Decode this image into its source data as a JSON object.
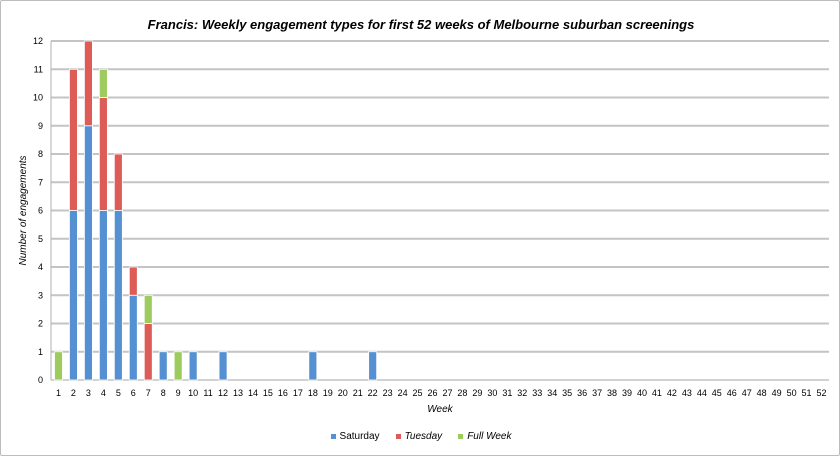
{
  "chart_data": {
    "type": "bar",
    "stacked": true,
    "title": "Francis: Weekly engagement types for first 52 weeks of Melbourne suburban screenings",
    "xlabel": "Week",
    "ylabel": "Number of engagements",
    "ylim": [
      0,
      12
    ],
    "yticks": [
      0,
      1,
      2,
      3,
      4,
      5,
      6,
      7,
      8,
      9,
      10,
      11,
      12
    ],
    "grid": true,
    "legend_position": "bottom",
    "categories": [
      "1",
      "2",
      "3",
      "4",
      "5",
      "6",
      "7",
      "8",
      "9",
      "10",
      "11",
      "12",
      "13",
      "14",
      "15",
      "16",
      "17",
      "18",
      "19",
      "20",
      "21",
      "22",
      "23",
      "24",
      "25",
      "26",
      "27",
      "28",
      "29",
      "30",
      "31",
      "32",
      "33",
      "34",
      "35",
      "36",
      "37",
      "38",
      "39",
      "40",
      "41",
      "42",
      "43",
      "44",
      "45",
      "46",
      "47",
      "48",
      "49",
      "50",
      "51",
      "52"
    ],
    "series": [
      {
        "name": "Saturday",
        "color": "#5591d2",
        "italic": false,
        "values": [
          0,
          6,
          9,
          6,
          6,
          3,
          0,
          1,
          0,
          1,
          0,
          1,
          0,
          0,
          0,
          0,
          0,
          1,
          0,
          0,
          0,
          1,
          0,
          0,
          0,
          0,
          0,
          0,
          0,
          0,
          0,
          0,
          0,
          0,
          0,
          0,
          0,
          0,
          0,
          0,
          0,
          0,
          0,
          0,
          0,
          0,
          0,
          0,
          0,
          0,
          0,
          0
        ]
      },
      {
        "name": "Tuesday",
        "color": "#de5c58",
        "italic": true,
        "values": [
          0,
          5,
          3,
          4,
          2,
          1,
          2,
          0,
          0,
          0,
          0,
          0,
          0,
          0,
          0,
          0,
          0,
          0,
          0,
          0,
          0,
          0,
          0,
          0,
          0,
          0,
          0,
          0,
          0,
          0,
          0,
          0,
          0,
          0,
          0,
          0,
          0,
          0,
          0,
          0,
          0,
          0,
          0,
          0,
          0,
          0,
          0,
          0,
          0,
          0,
          0,
          0
        ]
      },
      {
        "name": "Full Week",
        "color": "#9dcb5e",
        "italic": true,
        "values": [
          1,
          0,
          0,
          1,
          0,
          0,
          1,
          0,
          1,
          0,
          0,
          0,
          0,
          0,
          0,
          0,
          0,
          0,
          0,
          0,
          0,
          0,
          0,
          0,
          0,
          0,
          0,
          0,
          0,
          0,
          0,
          0,
          0,
          0,
          0,
          0,
          0,
          0,
          0,
          0,
          0,
          0,
          0,
          0,
          0,
          0,
          0,
          0,
          0,
          0,
          0,
          0
        ]
      }
    ]
  }
}
